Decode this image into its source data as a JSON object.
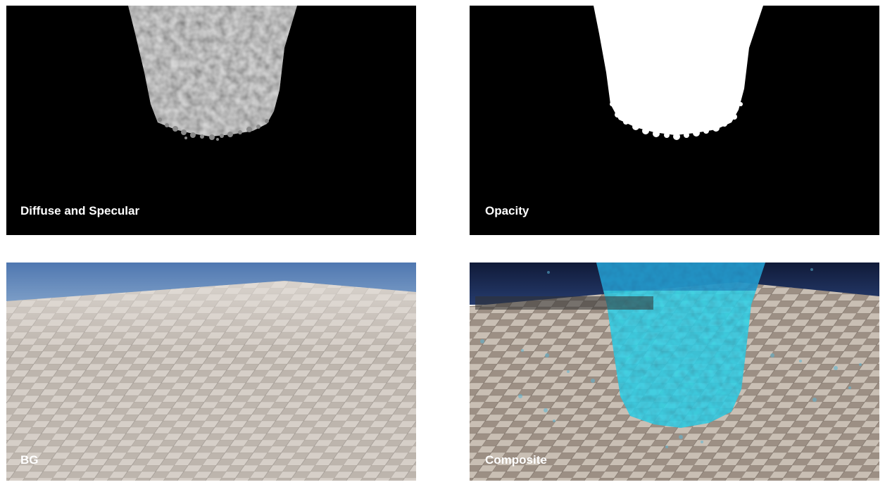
{
  "panels": {
    "diffuse": {
      "caption": "Diffuse and Specular"
    },
    "opacity": {
      "caption": "Opacity"
    },
    "bg": {
      "caption": "BG"
    },
    "composite": {
      "caption": "Composite"
    }
  },
  "colors": {
    "background_black": "#000000",
    "particle_gray": "#8a8a8a",
    "particle_white": "#ffffff",
    "sky_blue": "#5a80b4",
    "tile_light": "#d4cdc6",
    "tile_dark": "#b9b1a9",
    "particle_cyan": "#22a8c4",
    "debug_text": "#22dd22"
  }
}
